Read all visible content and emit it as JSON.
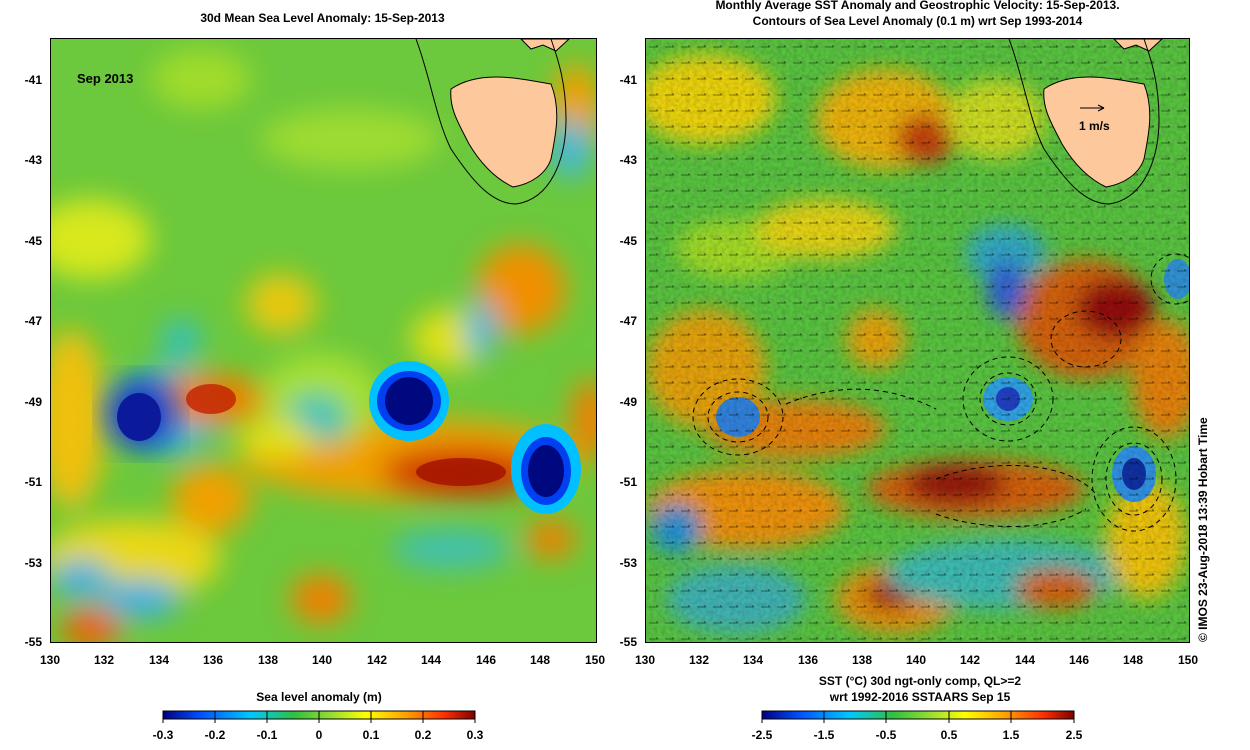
{
  "left_panel": {
    "title": "30d Mean Sea Level Anomaly: 15-Sep-2013",
    "date_label": "Sep 2013",
    "colorbar": {
      "title": "Sea level anomaly (m)",
      "ticks": [
        "-0.3",
        "-0.2",
        "-0.1",
        "0",
        "0.1",
        "0.2",
        "0.3"
      ]
    }
  },
  "right_panel": {
    "title_line1": "Monthly Average SST Anomaly  and Geostrophic Velocity: 15-Sep-2013.",
    "title_line2": "Contours of Sea Level Anomaly (0.1 m) wrt Sep 1993-2014",
    "velocity_scale_label": "1 m/s",
    "colorbar": {
      "title_line1": "SST (°C) 30d ngt-only comp, QL>=2",
      "title_line2": "wrt 1992-2016 SSTAARS Sep 15",
      "ticks": [
        "-2.5",
        "-1.5",
        "-0.5",
        "0.5",
        "1.5",
        "2.5"
      ]
    }
  },
  "axes": {
    "y_ticks": [
      "-41",
      "-43",
      "-45",
      "-47",
      "-49",
      "-51",
      "-53",
      "-55"
    ],
    "x_ticks": [
      "130",
      "132",
      "134",
      "136",
      "138",
      "140",
      "142",
      "144",
      "146",
      "148",
      "150"
    ],
    "lat_range": [
      -55,
      -40
    ],
    "lon_range": [
      130,
      150
    ]
  },
  "credit": "© IMOS 23-Aug-2018 13:39 Hobart Time",
  "colors": {
    "land": "#fcc89c",
    "background_field": "#5ec24a",
    "colormap": [
      "#00007f",
      "#0050ff",
      "#00c8ff",
      "#30c040",
      "#a0e030",
      "#ffff00",
      "#ffa000",
      "#ff3000",
      "#7f0000"
    ]
  }
}
